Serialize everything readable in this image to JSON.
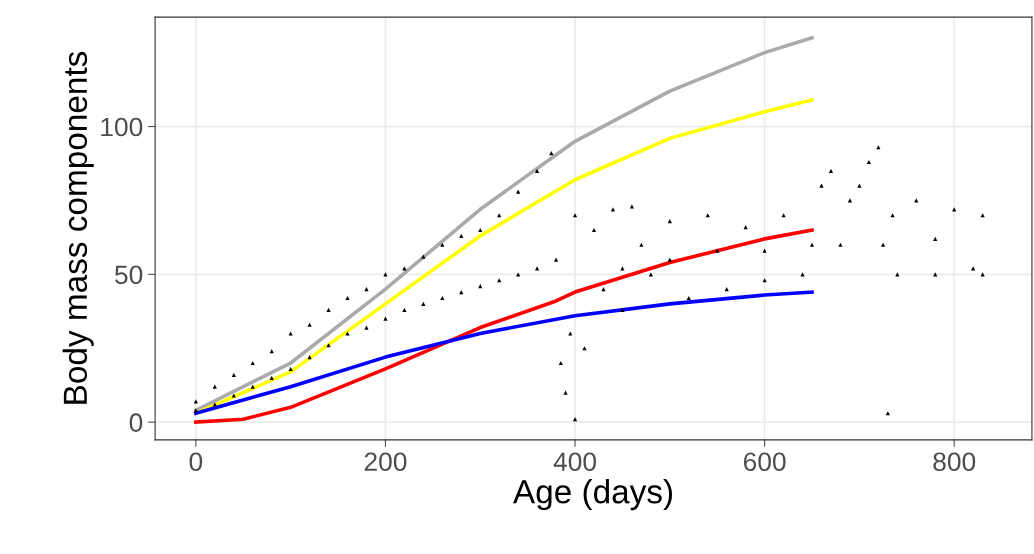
{
  "chart_data": {
    "type": "scatter",
    "xlabel": "Age (days)",
    "ylabel": "Body mass components",
    "xlim": [
      -43,
      882
    ],
    "ylim": [
      -6,
      137
    ],
    "xticks": [
      0,
      200,
      400,
      600,
      800
    ],
    "yticks": [
      0,
      50,
      100
    ],
    "grid": true,
    "legend": false,
    "series": [
      {
        "color": "#000000",
        "marker": "triangle",
        "x": [
          0,
          20,
          40,
          60,
          80,
          100,
          120,
          140,
          160,
          180,
          200,
          220,
          240,
          260,
          280,
          300,
          320,
          340,
          360,
          380,
          0,
          20,
          40,
          60,
          80,
          100,
          120,
          140,
          160,
          180,
          200,
          220,
          240,
          260,
          280,
          300,
          320,
          340,
          360,
          375,
          385,
          390,
          395,
          400,
          400,
          410,
          420,
          430,
          440,
          450,
          460,
          470,
          480,
          500,
          520,
          540,
          560,
          580,
          600,
          620,
          640,
          660,
          670,
          680,
          690,
          700,
          710,
          720,
          725,
          730,
          735,
          740,
          760,
          780,
          800,
          820,
          830,
          830,
          500,
          600,
          450,
          550,
          650,
          780
        ],
        "values": [
          4,
          6,
          9,
          12,
          15,
          18,
          22,
          26,
          30,
          32,
          35,
          38,
          40,
          42,
          44,
          46,
          48,
          50,
          52,
          55,
          7,
          12,
          16,
          20,
          24,
          30,
          33,
          38,
          42,
          45,
          50,
          52,
          56,
          60,
          63,
          65,
          70,
          78,
          85,
          91,
          20,
          10,
          30,
          1,
          70,
          25,
          65,
          45,
          72,
          38,
          73,
          60,
          50,
          68,
          42,
          70,
          45,
          66,
          48,
          70,
          50,
          80,
          85,
          60,
          75,
          80,
          88,
          93,
          60,
          3,
          70,
          50,
          75,
          50,
          72,
          52,
          70,
          50,
          55,
          58,
          52,
          58,
          60,
          62
        ]
      },
      {
        "type": "line",
        "color": "#aaaaaa",
        "x": [
          0,
          100,
          200,
          300,
          400,
          500,
          600,
          650
        ],
        "values": [
          4,
          20,
          45,
          72,
          95,
          112,
          125,
          130
        ]
      },
      {
        "type": "line",
        "color": "#ffff00",
        "x": [
          0,
          100,
          200,
          300,
          400,
          500,
          600,
          650
        ],
        "values": [
          3,
          17,
          40,
          63,
          82,
          96,
          105,
          109
        ]
      },
      {
        "type": "line",
        "color": "#ff0000",
        "x": [
          0,
          50,
          100,
          200,
          300,
          380,
          400,
          500,
          600,
          650
        ],
        "values": [
          0,
          1,
          5,
          18,
          32,
          41,
          44,
          54,
          62,
          65
        ]
      },
      {
        "type": "line",
        "color": "#0000ff",
        "x": [
          0,
          100,
          200,
          300,
          400,
          500,
          600,
          650
        ],
        "values": [
          3,
          12,
          22,
          30,
          36,
          40,
          43,
          44
        ]
      }
    ]
  }
}
